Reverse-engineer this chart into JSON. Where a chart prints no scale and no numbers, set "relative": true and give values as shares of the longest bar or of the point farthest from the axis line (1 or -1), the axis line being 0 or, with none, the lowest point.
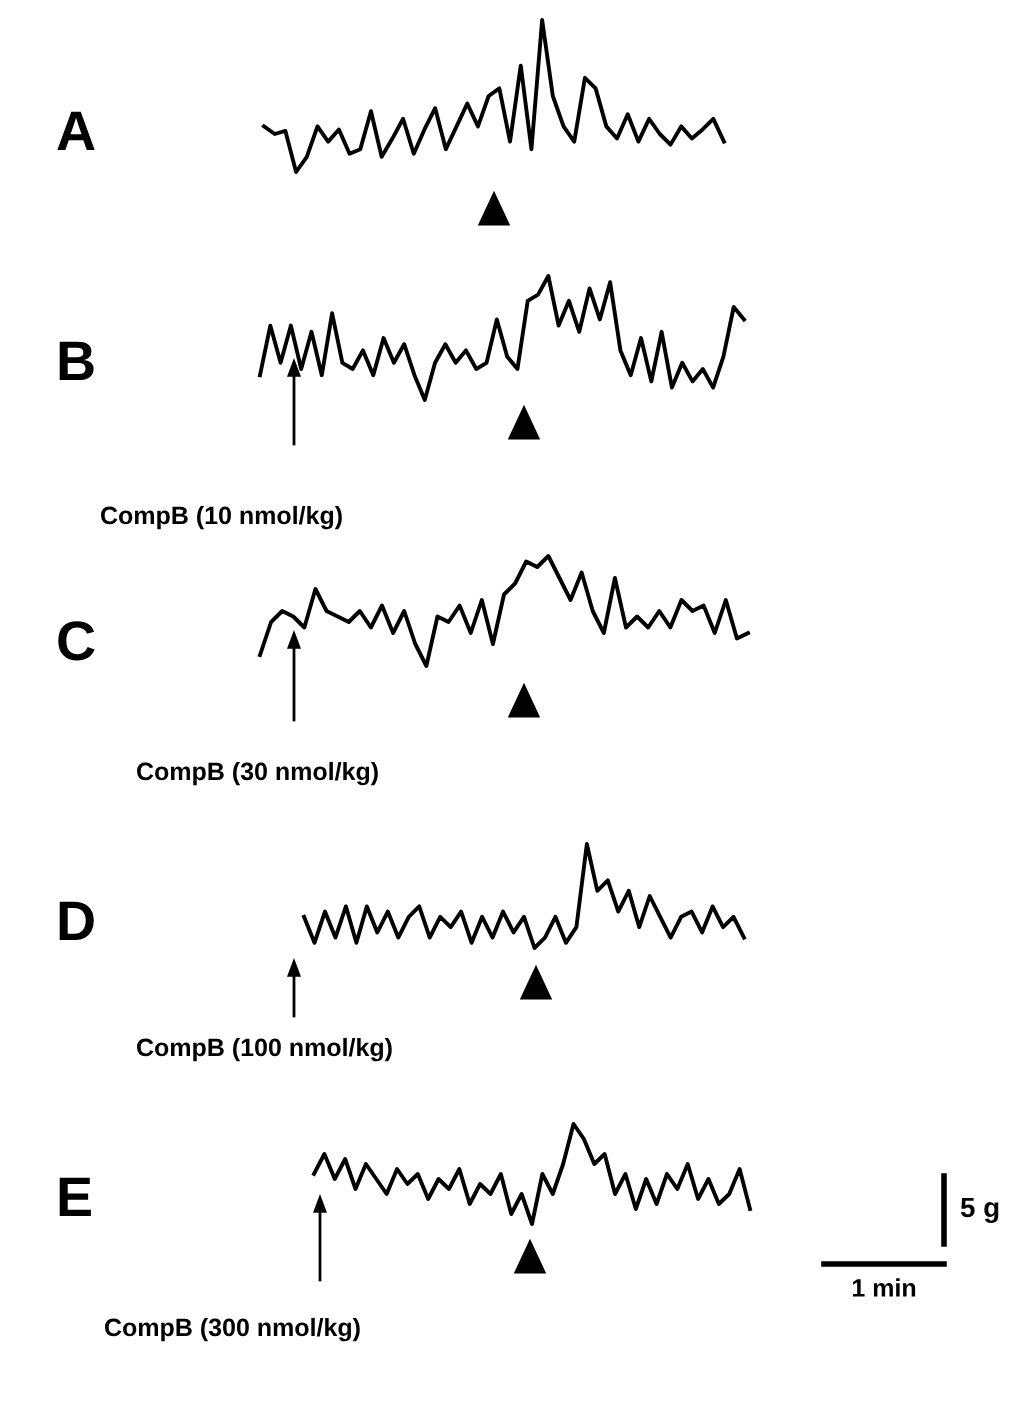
{
  "chart_data": [
    {
      "type": "line",
      "title": "A",
      "relative": true,
      "tick_labels": false,
      "marker": "none",
      "line_style": "solid",
      "color": "#000000",
      "categories": [
        null,
        null,
        null,
        null,
        null,
        null,
        null,
        null,
        null,
        null,
        null,
        null,
        null,
        null,
        null,
        null,
        null,
        null,
        null,
        null,
        null,
        null,
        null,
        null,
        null,
        null,
        null,
        null,
        null,
        null,
        null,
        null,
        null,
        null,
        null,
        null,
        null,
        null,
        null,
        null,
        null,
        null,
        null,
        null
      ],
      "values": [
        0.3,
        0.25,
        0.27,
        0.0,
        0.1,
        0.3,
        0.2,
        0.28,
        0.12,
        0.15,
        0.4,
        0.1,
        0.22,
        0.35,
        0.12,
        0.28,
        0.42,
        0.15,
        0.3,
        0.45,
        0.3,
        0.5,
        0.55,
        0.2,
        0.7,
        0.15,
        1.0,
        0.5,
        0.3,
        0.2,
        0.62,
        0.55,
        0.3,
        0.22,
        0.38,
        0.2,
        0.35,
        0.25,
        0.18,
        0.3,
        0.22,
        0.28,
        0.35,
        0.2
      ]
    },
    {
      "type": "line",
      "title": "B",
      "relative": true,
      "tick_labels": false,
      "marker": "none",
      "line_style": "solid",
      "color": "#000000",
      "annotations": [
        "CompB (10 nmol/kg)"
      ],
      "categories": [
        null,
        null,
        null,
        null,
        null,
        null,
        null,
        null,
        null,
        null,
        null,
        null,
        null,
        null,
        null,
        null,
        null,
        null,
        null,
        null,
        null,
        null,
        null,
        null,
        null,
        null,
        null,
        null,
        null,
        null,
        null,
        null,
        null,
        null,
        null,
        null,
        null,
        null,
        null,
        null,
        null,
        null,
        null,
        null,
        null,
        null,
        null,
        null
      ],
      "values": [
        0.2,
        0.6,
        0.3,
        0.6,
        0.25,
        0.55,
        0.2,
        0.7,
        0.3,
        0.25,
        0.4,
        0.2,
        0.5,
        0.3,
        0.45,
        0.2,
        0.0,
        0.3,
        0.45,
        0.3,
        0.4,
        0.25,
        0.3,
        0.65,
        0.35,
        0.25,
        0.8,
        0.85,
        1.0,
        0.6,
        0.8,
        0.55,
        0.9,
        0.65,
        0.95,
        0.4,
        0.2,
        0.5,
        0.15,
        0.55,
        0.1,
        0.3,
        0.15,
        0.25,
        0.1,
        0.35,
        0.75,
        0.65
      ]
    },
    {
      "type": "line",
      "title": "C",
      "relative": true,
      "tick_labels": false,
      "marker": "none",
      "line_style": "solid",
      "color": "#000000",
      "annotations": [
        "CompB (30 nmol/kg)"
      ],
      "categories": [
        null,
        null,
        null,
        null,
        null,
        null,
        null,
        null,
        null,
        null,
        null,
        null,
        null,
        null,
        null,
        null,
        null,
        null,
        null,
        null,
        null,
        null,
        null,
        null,
        null,
        null,
        null,
        null,
        null,
        null,
        null,
        null,
        null,
        null,
        null,
        null,
        null,
        null,
        null,
        null,
        null,
        null,
        null,
        null,
        null
      ],
      "values": [
        0.1,
        0.4,
        0.5,
        0.45,
        0.35,
        0.7,
        0.5,
        0.45,
        0.4,
        0.5,
        0.35,
        0.55,
        0.3,
        0.5,
        0.2,
        0.0,
        0.45,
        0.4,
        0.55,
        0.3,
        0.6,
        0.2,
        0.65,
        0.75,
        0.95,
        0.9,
        1.0,
        0.8,
        0.6,
        0.85,
        0.5,
        0.3,
        0.8,
        0.35,
        0.45,
        0.35,
        0.5,
        0.35,
        0.6,
        0.5,
        0.55,
        0.3,
        0.6,
        0.25,
        0.3
      ]
    },
    {
      "type": "line",
      "title": "D",
      "relative": true,
      "tick_labels": false,
      "marker": "none",
      "line_style": "solid",
      "color": "#000000",
      "annotations": [
        "CompB (100 nmol/kg)"
      ],
      "categories": [
        null,
        null,
        null,
        null,
        null,
        null,
        null,
        null,
        null,
        null,
        null,
        null,
        null,
        null,
        null,
        null,
        null,
        null,
        null,
        null,
        null,
        null,
        null,
        null,
        null,
        null,
        null,
        null,
        null,
        null,
        null,
        null,
        null,
        null,
        null,
        null,
        null,
        null,
        null,
        null,
        null,
        null,
        null
      ],
      "values": [
        0.3,
        0.05,
        0.35,
        0.1,
        0.4,
        0.05,
        0.4,
        0.15,
        0.35,
        0.1,
        0.3,
        0.4,
        0.1,
        0.3,
        0.2,
        0.35,
        0.05,
        0.3,
        0.1,
        0.35,
        0.15,
        0.3,
        0.0,
        0.1,
        0.3,
        0.05,
        0.2,
        1.0,
        0.55,
        0.65,
        0.35,
        0.55,
        0.2,
        0.5,
        0.3,
        0.1,
        0.3,
        0.35,
        0.15,
        0.4,
        0.2,
        0.3,
        0.1
      ]
    },
    {
      "type": "line",
      "title": "E",
      "relative": true,
      "tick_labels": false,
      "marker": "none",
      "line_style": "solid",
      "color": "#000000",
      "annotations": [
        "CompB (300 nmol/kg)",
        "5 g",
        "1 min"
      ],
      "categories": [
        null,
        null,
        null,
        null,
        null,
        null,
        null,
        null,
        null,
        null,
        null,
        null,
        null,
        null,
        null,
        null,
        null,
        null,
        null,
        null,
        null,
        null,
        null,
        null,
        null,
        null,
        null,
        null,
        null,
        null,
        null,
        null,
        null,
        null,
        null,
        null,
        null,
        null,
        null,
        null,
        null,
        null,
        null
      ],
      "values": [
        0.5,
        0.7,
        0.45,
        0.65,
        0.35,
        0.6,
        0.45,
        0.3,
        0.55,
        0.4,
        0.5,
        0.25,
        0.45,
        0.35,
        0.55,
        0.2,
        0.4,
        0.3,
        0.5,
        0.1,
        0.3,
        0.0,
        0.5,
        0.3,
        0.6,
        1.0,
        0.85,
        0.6,
        0.7,
        0.3,
        0.5,
        0.15,
        0.45,
        0.2,
        0.5,
        0.35,
        0.6,
        0.25,
        0.45,
        0.2,
        0.3,
        0.55,
        0.15
      ]
    }
  ]
}
